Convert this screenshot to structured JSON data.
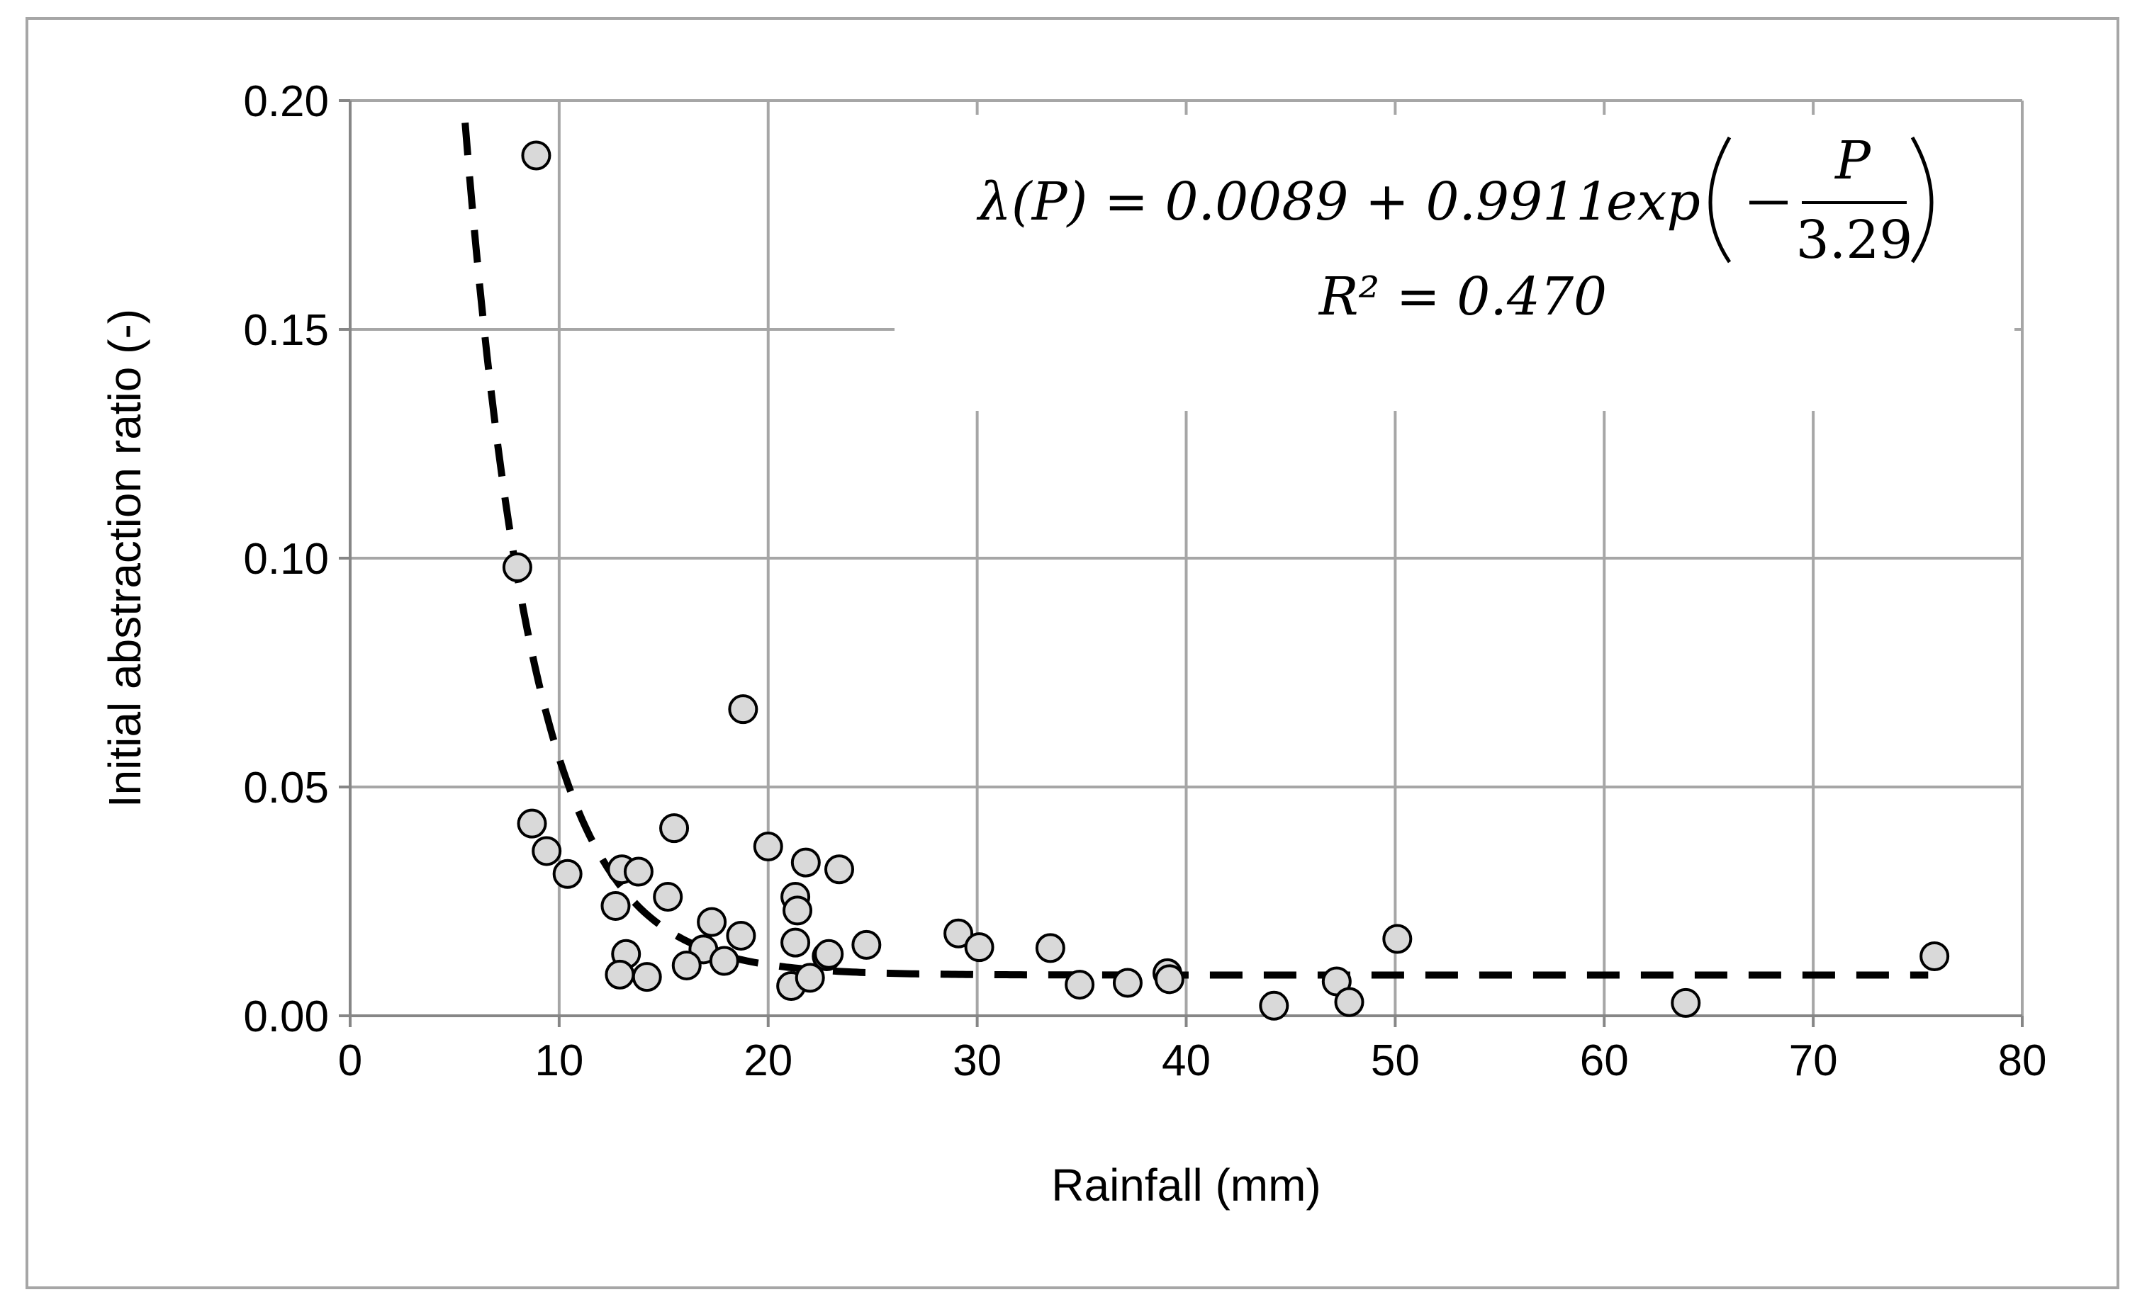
{
  "chart_data": {
    "type": "scatter",
    "xlabel": "Rainfall (mm)",
    "ylabel": "Initial abstraction ratio (-)",
    "xlim": [
      0,
      80
    ],
    "ylim": [
      0,
      0.2
    ],
    "x_ticks": [
      0,
      10,
      20,
      30,
      40,
      50,
      60,
      70,
      80
    ],
    "y_ticks": [
      0.0,
      0.05,
      0.1,
      0.15,
      0.2
    ],
    "x_tick_labels": [
      "0",
      "10",
      "20",
      "30",
      "40",
      "50",
      "60",
      "70",
      "80"
    ],
    "y_tick_labels": [
      "0.00",
      "0.05",
      "0.10",
      "0.15",
      "0.20"
    ],
    "grid": true,
    "series": [
      {
        "type": "scatter",
        "marker": "circle",
        "fill_color": "#d9d9d9",
        "edge_color": "#000000",
        "points": [
          [
            8.9,
            0.188
          ],
          [
            8.0,
            0.098
          ],
          [
            18.8,
            0.067
          ],
          [
            8.7,
            0.042
          ],
          [
            9.4,
            0.036
          ],
          [
            10.4,
            0.031
          ],
          [
            13.0,
            0.032
          ],
          [
            13.8,
            0.0315
          ],
          [
            15.5,
            0.041
          ],
          [
            20.0,
            0.037
          ],
          [
            21.8,
            0.0335
          ],
          [
            23.4,
            0.032
          ],
          [
            12.7,
            0.024
          ],
          [
            15.2,
            0.026
          ],
          [
            21.3,
            0.026
          ],
          [
            21.4,
            0.023
          ],
          [
            17.3,
            0.0205
          ],
          [
            18.7,
            0.0175
          ],
          [
            29.1,
            0.018
          ],
          [
            13.2,
            0.0135
          ],
          [
            16.9,
            0.0145
          ],
          [
            21.3,
            0.016
          ],
          [
            22.8,
            0.013
          ],
          [
            22.9,
            0.0135
          ],
          [
            24.7,
            0.0155
          ],
          [
            30.1,
            0.015
          ],
          [
            33.5,
            0.0148
          ],
          [
            16.1,
            0.011
          ],
          [
            17.9,
            0.012
          ],
          [
            12.9,
            0.009
          ],
          [
            14.2,
            0.0085
          ],
          [
            21.1,
            0.0065
          ],
          [
            22.0,
            0.0083
          ],
          [
            34.9,
            0.0068
          ],
          [
            37.2,
            0.0072
          ],
          [
            39.1,
            0.0093
          ],
          [
            39.2,
            0.008
          ],
          [
            44.2,
            0.0022
          ],
          [
            47.2,
            0.0075
          ],
          [
            47.8,
            0.003
          ],
          [
            50.1,
            0.0168
          ],
          [
            63.9,
            0.0028
          ],
          [
            75.8,
            0.013
          ]
        ]
      },
      {
        "type": "line",
        "style": "dashed",
        "color": "#000000",
        "formula": "0.0089 + 0.9911*exp(-P/3.29)",
        "x_range": [
          5.5,
          75.5
        ]
      }
    ],
    "annotations": {
      "equation_lhs": "λ(P) = 0.0089 + 0.9911 ",
      "equation_exp": "exp",
      "equation_numerator": "P",
      "equation_denominator": "3.29",
      "r2_text": "R² = 0.470"
    }
  }
}
